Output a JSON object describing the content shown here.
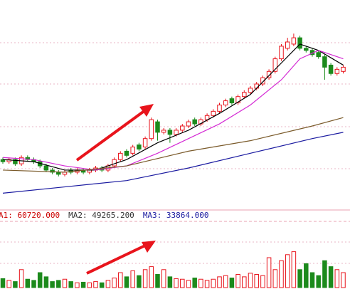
{
  "chart_data": {
    "type": "candlestick",
    "ylim": [
      0,
      100
    ],
    "open": [
      24,
      23,
      24,
      22,
      25,
      24,
      23,
      21,
      19,
      18,
      17,
      19,
      18,
      19,
      18,
      19,
      20,
      19,
      21,
      24,
      28,
      27,
      31,
      30,
      34,
      42,
      37,
      38,
      36,
      38,
      40,
      43,
      41,
      43,
      45,
      47,
      50,
      53,
      51,
      54,
      56,
      58,
      60,
      63,
      66,
      72,
      77,
      79,
      82,
      77,
      76,
      75,
      73,
      69,
      65,
      66
    ],
    "high": [
      25,
      25,
      25,
      26,
      26,
      25,
      24,
      22,
      20,
      19,
      19,
      20,
      20,
      20,
      20,
      21,
      21,
      22,
      25,
      28,
      29,
      31,
      32,
      35,
      44,
      43,
      39,
      39,
      39,
      41,
      43,
      44,
      44,
      46,
      48,
      51,
      53,
      54,
      55,
      57,
      59,
      61,
      64,
      67,
      73,
      79,
      82,
      84,
      83,
      78,
      77,
      76,
      74,
      70,
      68,
      69
    ],
    "low": [
      22,
      22,
      21,
      21,
      23,
      22,
      20,
      18,
      17,
      16,
      16,
      17,
      17,
      17,
      17,
      18,
      18,
      18,
      20,
      23,
      25,
      26,
      28,
      29,
      33,
      33,
      36,
      32,
      35,
      37,
      39,
      40,
      40,
      42,
      44,
      46,
      49,
      50,
      50,
      53,
      55,
      57,
      59,
      62,
      65,
      71,
      76,
      78,
      76,
      75,
      73,
      72,
      62,
      64,
      64,
      65
    ],
    "close": [
      23,
      24,
      22,
      25,
      24,
      23,
      21,
      19,
      18,
      17,
      18,
      18,
      19,
      18,
      19,
      20,
      19,
      21,
      24,
      27,
      26,
      30,
      29,
      34,
      43,
      37,
      38,
      36,
      38,
      40,
      42,
      41,
      43,
      45,
      47,
      50,
      52,
      51,
      54,
      56,
      58,
      60,
      63,
      66,
      72,
      78,
      80,
      82,
      77,
      76,
      74,
      73,
      68,
      65,
      67,
      68
    ],
    "up_color": "#e8141c",
    "down_color": "#1c8a1c",
    "lines": [
      {
        "color": "#000000",
        "x": [
          0,
          5,
          10,
          15,
          20,
          25,
          30,
          35,
          40,
          45,
          48,
          51,
          55
        ],
        "values": [
          24,
          23,
          19,
          19,
          24,
          32,
          38,
          46,
          55,
          70,
          79,
          76,
          69
        ]
      },
      {
        "color": "#d42ad4",
        "x": [
          0,
          5,
          10,
          15,
          20,
          25,
          30,
          35,
          40,
          45,
          48,
          51,
          55
        ],
        "values": [
          25,
          24,
          21,
          19,
          21,
          27,
          34,
          41,
          50,
          62,
          72,
          76,
          72
        ]
      },
      {
        "color": "#7a5a2a",
        "x": [
          0,
          10,
          20,
          30,
          40,
          50,
          55
        ],
        "values": [
          19,
          18,
          21,
          28,
          33,
          40,
          44
        ]
      },
      {
        "color": "#1a1aa0",
        "x": [
          0,
          10,
          20,
          30,
          40,
          50,
          55
        ],
        "values": [
          8,
          11,
          14,
          20,
          27,
          34,
          37
        ]
      }
    ],
    "volume": [
      15,
      12,
      10,
      30,
      14,
      12,
      25,
      18,
      10,
      12,
      14,
      10,
      8,
      9,
      8,
      10,
      8,
      12,
      16,
      25,
      18,
      28,
      20,
      30,
      35,
      22,
      30,
      18,
      15,
      14,
      12,
      16,
      14,
      12,
      14,
      18,
      20,
      16,
      22,
      18,
      24,
      22,
      20,
      50,
      30,
      45,
      55,
      60,
      30,
      40,
      25,
      20,
      45,
      35,
      30,
      25
    ],
    "volume_ylim": [
      0,
      100
    ],
    "annotations": [
      {
        "text": "A1: 60720.000",
        "color": "#cc0000"
      },
      {
        "text": "MA2: 49265.200",
        "color": "#333333"
      },
      {
        "text": "MA3: 33864.000",
        "color": "#1a1aa0"
      }
    ]
  }
}
